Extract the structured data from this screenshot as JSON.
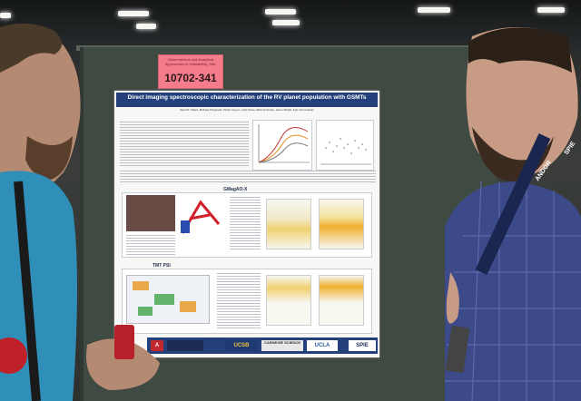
{
  "scene": {
    "description_label": "",
    "poster_tag": {
      "small_text": "Observational and Analytical Approaches to Habitability, Star,",
      "number": "10702-341"
    },
    "poster": {
      "title": "Direct imaging spectroscopic characterization of the RV planet population with GSMTs",
      "authors": "Jared R. Males, Michael Fitzgerald, Olivier Guyon, Laird Close, Elliot Gutzman, Jason Wright, Kyle Van Gorkom",
      "section_gmagao": "GMagAO-X",
      "section_tmt": "TMT PSI",
      "logos": [
        "UCSB",
        "CARNEGIE SCIENCE",
        "UCLA",
        "SPIE"
      ]
    },
    "lanyard_text": "ANDOR",
    "badge_text": "SPIE"
  },
  "colors": {
    "poster_blue": "#23407a",
    "tag_pink": "#f57d8b",
    "board_green": "#3f4a42"
  }
}
